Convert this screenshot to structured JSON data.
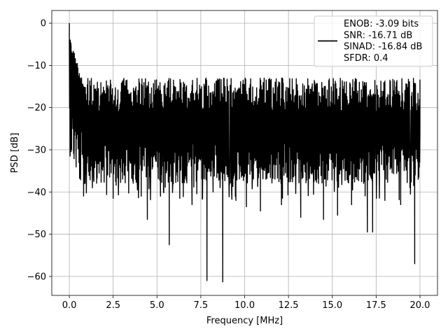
{
  "chart_data": {
    "type": "line",
    "xlabel": "Frequency [MHz]",
    "ylabel": "PSD [dB]",
    "xlim": [
      -1.0,
      21.0
    ],
    "ylim": [
      -64.5,
      3.0
    ],
    "xticks": [
      0.0,
      2.5,
      5.0,
      7.5,
      10.0,
      12.5,
      15.0,
      17.5,
      20.0
    ],
    "xtick_labels": [
      "0.0",
      "2.5",
      "5.0",
      "7.5",
      "10.0",
      "12.5",
      "15.0",
      "17.5",
      "20.0"
    ],
    "yticks": [
      0,
      -10,
      -20,
      -30,
      -40,
      -50,
      -60
    ],
    "ytick_labels": [
      "0",
      "−10",
      "−20",
      "−30",
      "−40",
      "−50",
      "−60"
    ],
    "grid": true,
    "legend_position": "top-right",
    "series": [
      {
        "color": "#000000",
        "noise_band_db": [
          -38,
          -13
        ],
        "points": [
          [
            0.0,
            0.0
          ],
          [
            0.02,
            -16.0
          ],
          [
            0.05,
            -4.0
          ],
          [
            0.08,
            -14.0
          ],
          [
            0.1,
            -5.5
          ],
          [
            0.13,
            -22.0
          ],
          [
            0.16,
            -7.0
          ],
          [
            0.2,
            -25.0
          ],
          [
            0.24,
            -8.5
          ],
          [
            0.28,
            -28.0
          ],
          [
            0.33,
            -10.0
          ],
          [
            0.38,
            -30.5
          ],
          [
            0.45,
            -12.0
          ],
          [
            0.55,
            -33.0
          ],
          [
            0.7,
            -13.0
          ],
          [
            0.85,
            -38.0
          ],
          [
            1.1,
            -35.0
          ],
          [
            1.4,
            -37.5
          ],
          [
            2.5,
            -41.5
          ],
          [
            4.1,
            -41.0
          ],
          [
            4.45,
            -46.5
          ],
          [
            5.2,
            -41.0
          ],
          [
            5.7,
            -52.5
          ],
          [
            6.3,
            -41.5
          ],
          [
            7.0,
            -43.0
          ],
          [
            7.85,
            -61.0
          ],
          [
            8.2,
            -40.0
          ],
          [
            8.75,
            -61.3
          ],
          [
            9.5,
            -42.0
          ],
          [
            10.1,
            -43.5
          ],
          [
            10.9,
            -44.5
          ],
          [
            12.1,
            -43.0
          ],
          [
            13.2,
            -46.0
          ],
          [
            14.5,
            -46.5
          ],
          [
            15.3,
            -45.5
          ],
          [
            16.1,
            -43.0
          ],
          [
            17.0,
            -49.5
          ],
          [
            17.3,
            -49.5
          ],
          [
            18.0,
            -42.0
          ],
          [
            18.9,
            -43.0
          ],
          [
            19.7,
            -57.0
          ],
          [
            19.9,
            -37.0
          ],
          [
            20.0,
            -26.0
          ]
        ]
      }
    ],
    "legend": {
      "lines": [
        "ENOB: -3.09 bits",
        "SNR: -16.71 dB",
        "SINAD: -16.84 dB",
        "SFDR: 0.4"
      ]
    }
  }
}
